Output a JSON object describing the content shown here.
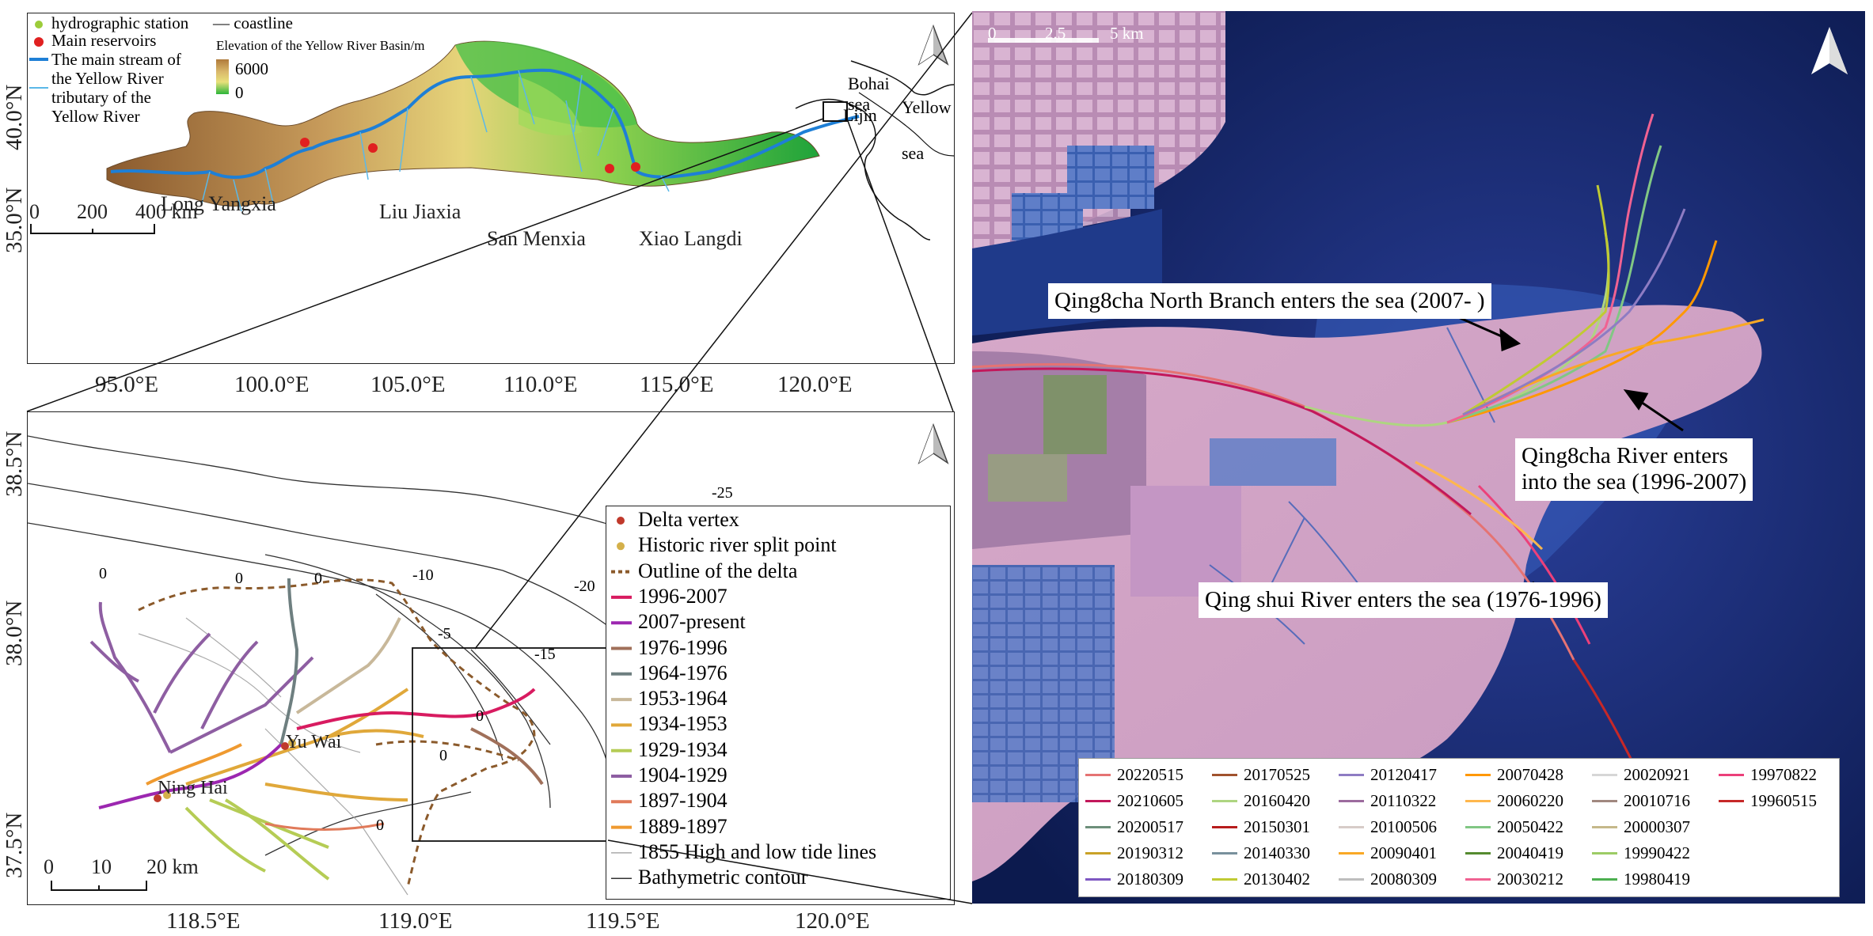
{
  "top_map": {
    "legend": {
      "hydrographic_station": "hydrographic station",
      "coastline": "— coastline",
      "main_reservoirs": "Main reservoirs",
      "main_stream_1": "The main stream of",
      "main_stream_2": "the Yellow River",
      "tributary_1": "tributary of the",
      "tributary_2": "Yellow River",
      "elevation_title": "Elevation of the Yellow River Basin/m",
      "elev_high": "6000",
      "elev_low": "0"
    },
    "reservoirs": [
      "Long Yangxia",
      "Liu Jiaxia",
      "San Menxia",
      "Xiao Langdi"
    ],
    "sea_labels": {
      "bohai_1": "Bohai",
      "bohai_2": "sea",
      "yellow": "Yellow",
      "yellow_sea": "sea",
      "lijin": "Lijin"
    },
    "scale": {
      "s0": "0",
      "s1": "200",
      "s2": "400 km"
    },
    "lat_ticks": [
      "40.0°N",
      "35.0°N"
    ],
    "lon_ticks": [
      "95.0°E",
      "100.0°E",
      "105.0°E",
      "110.0°E",
      "115.0°E",
      "120.0°E"
    ],
    "colors": {
      "main_stream": "#1e7fd6",
      "tributary": "#5bb8e8",
      "reservoir": "#e02020",
      "station": "#9ccc3a"
    }
  },
  "delta_map": {
    "legend": [
      {
        "label": "Delta vertex",
        "kind": "dot",
        "color": "#c0392b"
      },
      {
        "label": "Historic river split point",
        "kind": "dot",
        "color": "#d4b04a"
      },
      {
        "label": "Outline of the delta",
        "kind": "dash",
        "color": "#8b5a2b"
      },
      {
        "label": "1996-2007",
        "kind": "line",
        "color": "#d81b60"
      },
      {
        "label": "2007-present",
        "kind": "line",
        "color": "#9c27b0"
      },
      {
        "label": "1976-1996",
        "kind": "line",
        "color": "#a0705a"
      },
      {
        "label": "1964-1976",
        "kind": "line",
        "color": "#6e7f80"
      },
      {
        "label": "1953-1964",
        "kind": "line",
        "color": "#c8b89a"
      },
      {
        "label": "1934-1953",
        "kind": "line",
        "color": "#e0a83a"
      },
      {
        "label": "1929-1934",
        "kind": "line",
        "color": "#b5cc55"
      },
      {
        "label": "1904-1929",
        "kind": "line",
        "color": "#8e5ea2"
      },
      {
        "label": "1897-1904",
        "kind": "line",
        "color": "#e07a5a"
      },
      {
        "label": "1889-1897",
        "kind": "line",
        "color": "#ef9a30"
      },
      {
        "label": "1855 High and low tide lines",
        "kind": "thin",
        "color": "#aaaaaa"
      },
      {
        "label": "Bathymetric contour",
        "kind": "thin",
        "color": "#333333"
      }
    ],
    "place_labels": {
      "yuwai": "Yu Wai",
      "ninghai": "Ning Hai"
    },
    "contour_labels": [
      "-25",
      "-20",
      "-15",
      "-10",
      "-5",
      "0",
      "0",
      "0",
      "0",
      "0",
      "0"
    ],
    "scale": {
      "s0": "0",
      "s1": "10",
      "s2": "20 km"
    },
    "lat_ticks": [
      "38.5°N",
      "38.0°N",
      "37.5°N"
    ],
    "lon_ticks": [
      "118.5°E",
      "119.0°E",
      "119.5°E",
      "120.0°E"
    ]
  },
  "satellite": {
    "scale": {
      "s0": "0",
      "s1": "2.5",
      "s2": "5 km"
    },
    "callouts": {
      "north_branch": "Qing8cha North Branch enters the sea (2007- )",
      "qing8cha_1": "Qing8cha River enters",
      "qing8cha_2": "into the sea (1996-2007)",
      "qingshui": "Qing shui River enters the sea (1976-1996)"
    },
    "legend": [
      {
        "label": "20220515",
        "color": "#e57373"
      },
      {
        "label": "20210605",
        "color": "#c2185b"
      },
      {
        "label": "20200517",
        "color": "#6d8f7a"
      },
      {
        "label": "20190312",
        "color": "#c9a227"
      },
      {
        "label": "20180309",
        "color": "#7e57c2"
      },
      {
        "label": "20170525",
        "color": "#a0522d"
      },
      {
        "label": "20160420",
        "color": "#aed581"
      },
      {
        "label": "20150301",
        "color": "#b71c1c"
      },
      {
        "label": "20140330",
        "color": "#78909c"
      },
      {
        "label": "20130402",
        "color": "#c0ca33"
      },
      {
        "label": "20120417",
        "color": "#8e7cc3"
      },
      {
        "label": "20110322",
        "color": "#9c6b9e"
      },
      {
        "label": "20100506",
        "color": "#d7ccc8"
      },
      {
        "label": "20090401",
        "color": "#f9a825"
      },
      {
        "label": "20080309",
        "color": "#bdbdbd"
      },
      {
        "label": "20070428",
        "color": "#ff9800"
      },
      {
        "label": "20060220",
        "color": "#ffb74d"
      },
      {
        "label": "20050422",
        "color": "#81c784"
      },
      {
        "label": "20040419",
        "color": "#558b2f"
      },
      {
        "label": "20030212",
        "color": "#f06292"
      },
      {
        "label": "20020921",
        "color": "#d6d6d6"
      },
      {
        "label": "20010716",
        "color": "#a1887f"
      },
      {
        "label": "20000307",
        "color": "#c5b88a"
      },
      {
        "label": "19990422",
        "color": "#9ccc65"
      },
      {
        "label": "19980419",
        "color": "#4caf50"
      },
      {
        "label": "19970822",
        "color": "#ec407a"
      },
      {
        "label": "19960515",
        "color": "#c62828"
      }
    ]
  }
}
